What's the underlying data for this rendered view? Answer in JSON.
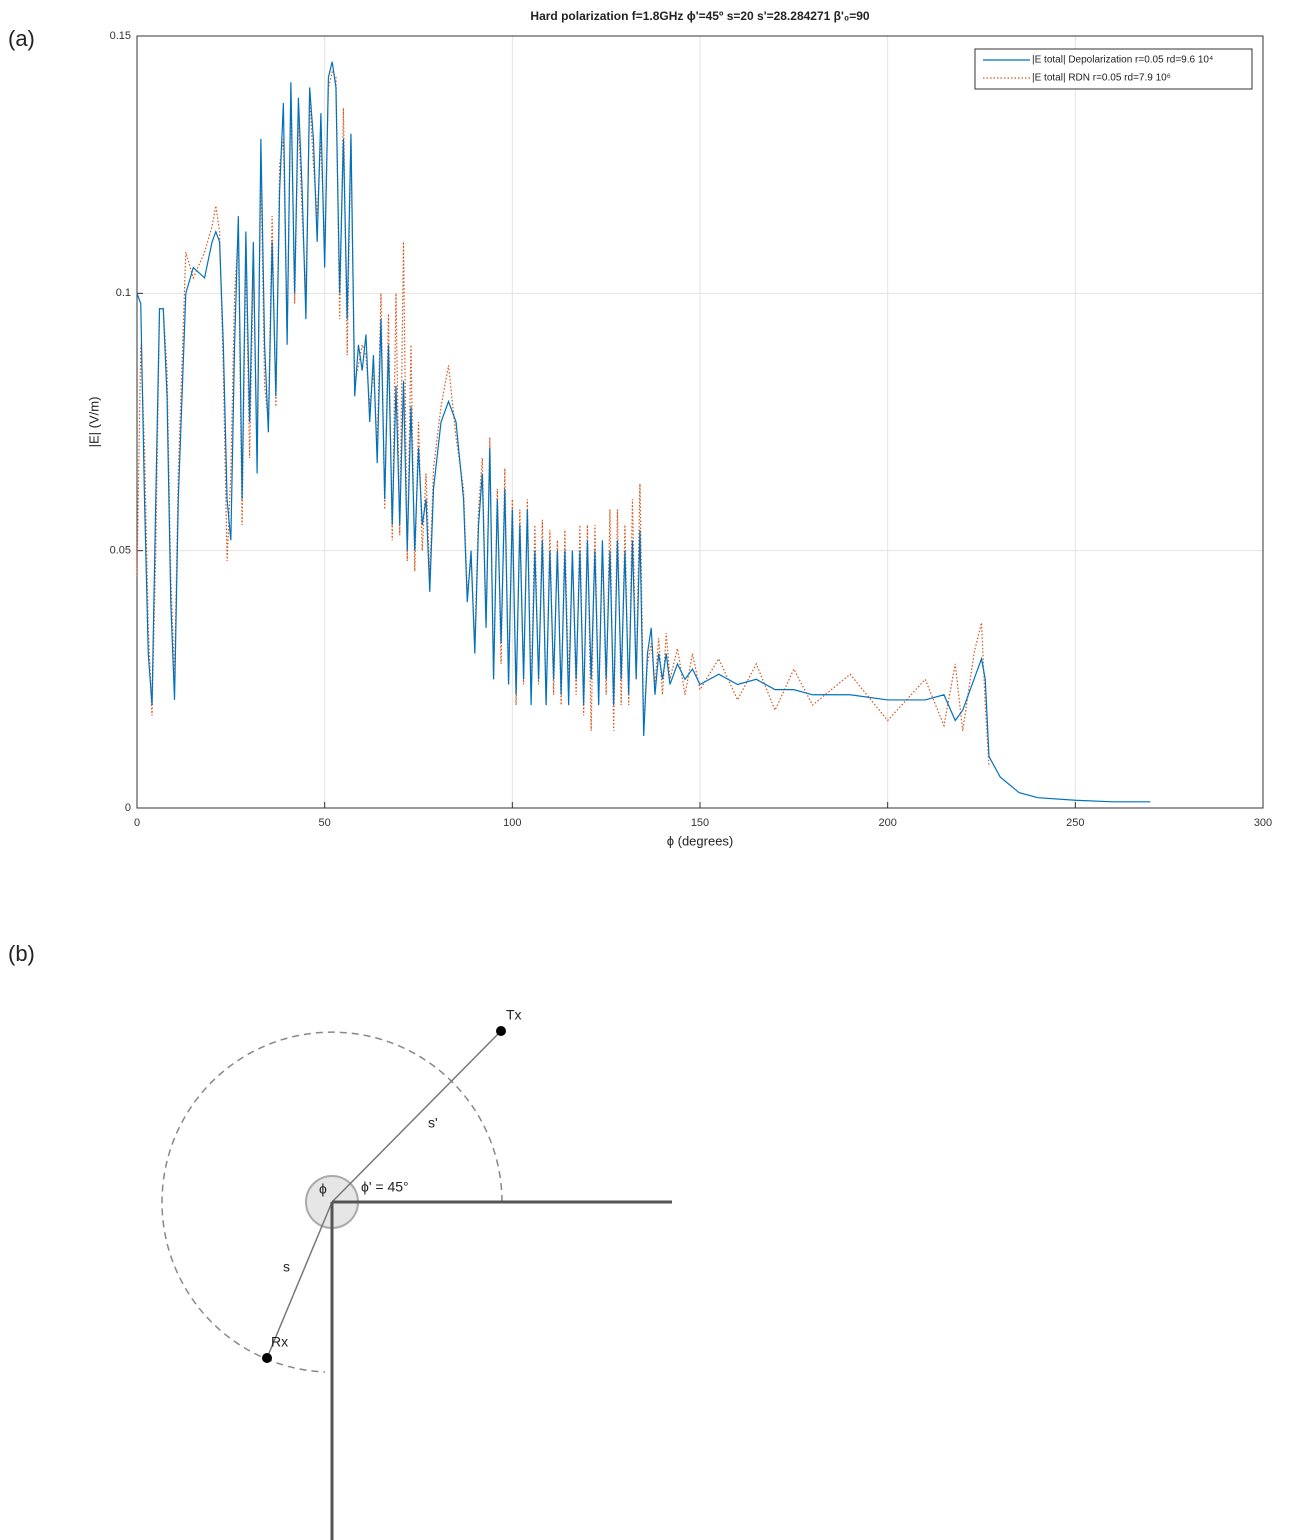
{
  "panel_labels": {
    "a": "(a)",
    "b": "(b)"
  },
  "chart_data": {
    "type": "line",
    "title": "Hard polarization f=1.8GHz ϕ'=45º s=20 s'=28.284271 β'₀=90",
    "xlabel": "ϕ (degrees)",
    "ylabel": "|E| (V/m)",
    "xlim": [
      0,
      300
    ],
    "xticks": [
      0,
      50,
      100,
      150,
      200,
      250,
      300
    ],
    "ylim": [
      0,
      0.15
    ],
    "yticks": [
      0,
      0.05,
      0.1,
      0.15
    ],
    "grid": true,
    "legend": "upper right",
    "x": [
      0,
      1,
      2,
      3,
      4,
      5,
      6,
      7,
      8,
      9,
      10,
      11,
      13,
      15,
      18,
      20,
      21,
      22,
      23,
      24,
      25,
      26,
      27,
      28,
      29,
      30,
      31,
      32,
      33,
      34,
      35,
      36,
      37,
      38,
      39,
      40,
      41,
      42,
      43,
      44,
      45,
      46,
      47,
      48,
      49,
      50,
      51,
      52,
      53,
      54,
      55,
      56,
      57,
      58,
      59,
      60,
      61,
      62,
      63,
      64,
      65,
      66,
      67,
      68,
      69,
      70,
      71,
      72,
      73,
      74,
      75,
      76,
      77,
      78,
      79,
      81,
      83,
      85,
      87,
      88,
      89,
      90,
      91,
      92,
      93,
      94,
      95,
      96,
      97,
      98,
      99,
      100,
      101,
      102,
      103,
      104,
      105,
      106,
      107,
      108,
      109,
      110,
      111,
      112,
      113,
      114,
      115,
      116,
      117,
      118,
      119,
      120,
      121,
      122,
      123,
      124,
      125,
      126,
      127,
      128,
      129,
      130,
      131,
      132,
      133,
      134,
      135,
      136,
      137,
      138,
      139,
      140,
      141,
      142,
      144,
      146,
      148,
      150,
      155,
      160,
      165,
      170,
      175,
      180,
      190,
      200,
      210,
      215,
      218,
      220,
      223,
      225,
      226,
      227,
      230,
      235,
      240,
      250,
      260,
      270
    ],
    "series": [
      {
        "name": "|E total| Depolarization r=0.05 rd=9.6 10⁴",
        "color": "#0072bd",
        "style": "solid",
        "values": [
          0.1,
          0.098,
          0.06,
          0.03,
          0.02,
          0.06,
          0.097,
          0.097,
          0.08,
          0.04,
          0.021,
          0.06,
          0.1,
          0.105,
          0.103,
          0.11,
          0.112,
          0.11,
          0.09,
          0.06,
          0.052,
          0.09,
          0.115,
          0.06,
          0.112,
          0.075,
          0.11,
          0.065,
          0.13,
          0.09,
          0.073,
          0.11,
          0.08,
          0.12,
          0.137,
          0.09,
          0.141,
          0.1,
          0.138,
          0.12,
          0.095,
          0.14,
          0.13,
          0.11,
          0.135,
          0.105,
          0.142,
          0.145,
          0.14,
          0.1,
          0.13,
          0.095,
          0.131,
          0.08,
          0.09,
          0.085,
          0.092,
          0.075,
          0.088,
          0.067,
          0.095,
          0.06,
          0.09,
          0.055,
          0.082,
          0.055,
          0.083,
          0.05,
          0.078,
          0.05,
          0.07,
          0.055,
          0.06,
          0.042,
          0.062,
          0.075,
          0.079,
          0.075,
          0.06,
          0.04,
          0.05,
          0.03,
          0.055,
          0.065,
          0.035,
          0.07,
          0.025,
          0.06,
          0.032,
          0.062,
          0.024,
          0.058,
          0.022,
          0.055,
          0.025,
          0.058,
          0.02,
          0.05,
          0.025,
          0.052,
          0.02,
          0.05,
          0.025,
          0.05,
          0.022,
          0.05,
          0.02,
          0.05,
          0.025,
          0.05,
          0.02,
          0.052,
          0.025,
          0.05,
          0.02,
          0.052,
          0.025,
          0.05,
          0.02,
          0.052,
          0.025,
          0.05,
          0.022,
          0.052,
          0.025,
          0.054,
          0.014,
          0.03,
          0.035,
          0.022,
          0.03,
          0.025,
          0.03,
          0.024,
          0.028,
          0.025,
          0.027,
          0.024,
          0.026,
          0.024,
          0.025,
          0.023,
          0.023,
          0.022,
          0.022,
          0.021,
          0.021,
          0.022,
          0.017,
          0.019,
          0.025,
          0.029,
          0.025,
          0.01,
          0.006,
          0.003,
          0.002,
          0.0015,
          0.0012,
          0.0012
        ]
      },
      {
        "name": "|E total| RDN r=0.05 rd=7.9 10⁶",
        "color": "#d95319",
        "style": "dotted",
        "values": [
          0.045,
          0.09,
          0.07,
          0.035,
          0.018,
          0.05,
          0.097,
          0.097,
          0.085,
          0.045,
          0.025,
          0.065,
          0.108,
          0.103,
          0.108,
          0.113,
          0.117,
          0.112,
          0.085,
          0.048,
          0.065,
          0.1,
          0.112,
          0.055,
          0.108,
          0.068,
          0.105,
          0.07,
          0.125,
          0.082,
          0.075,
          0.115,
          0.078,
          0.125,
          0.13,
          0.092,
          0.14,
          0.098,
          0.135,
          0.115,
          0.1,
          0.138,
          0.125,
          0.115,
          0.13,
          0.108,
          0.14,
          0.143,
          0.142,
          0.095,
          0.136,
          0.088,
          0.13,
          0.083,
          0.086,
          0.09,
          0.088,
          0.078,
          0.085,
          0.07,
          0.1,
          0.058,
          0.096,
          0.052,
          0.1,
          0.053,
          0.11,
          0.048,
          0.09,
          0.046,
          0.075,
          0.05,
          0.065,
          0.045,
          0.066,
          0.078,
          0.086,
          0.072,
          0.062,
          0.042,
          0.048,
          0.032,
          0.058,
          0.068,
          0.036,
          0.072,
          0.025,
          0.062,
          0.028,
          0.066,
          0.024,
          0.06,
          0.02,
          0.058,
          0.024,
          0.06,
          0.022,
          0.055,
          0.024,
          0.056,
          0.02,
          0.054,
          0.022,
          0.052,
          0.02,
          0.054,
          0.024,
          0.05,
          0.022,
          0.055,
          0.018,
          0.055,
          0.015,
          0.055,
          0.02,
          0.05,
          0.022,
          0.058,
          0.015,
          0.058,
          0.02,
          0.055,
          0.02,
          0.06,
          0.025,
          0.063,
          0.016,
          0.028,
          0.032,
          0.024,
          0.033,
          0.022,
          0.034,
          0.025,
          0.031,
          0.022,
          0.03,
          0.023,
          0.029,
          0.021,
          0.028,
          0.019,
          0.027,
          0.02,
          0.026,
          0.017,
          0.025,
          0.016,
          0.028,
          0.015,
          0.03,
          0.036,
          0.02,
          0.008,
          null,
          null,
          null,
          null,
          null,
          null
        ]
      }
    ]
  },
  "diagram": {
    "tx": "Tx",
    "rx": "Rx",
    "s_prime": "s'",
    "s": "s",
    "phi": "ϕ",
    "phi_prime": "ϕ' = 45°"
  }
}
